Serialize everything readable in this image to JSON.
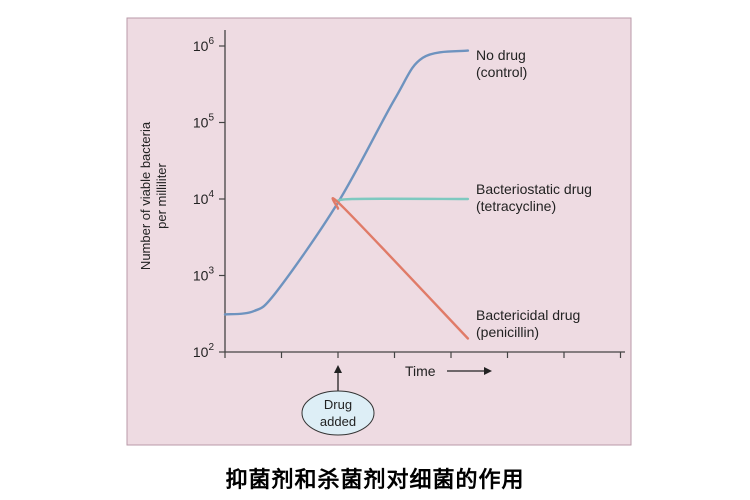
{
  "caption": "抑菌剂和杀菌剂对细菌的作用",
  "chart_data": {
    "type": "line",
    "title": "",
    "xlabel": "Time",
    "ylabel": "Number of viable bacteria per milliliter",
    "y_scale": "log",
    "ylim": [
      100,
      1000000
    ],
    "y_ticks": [
      {
        "value": 100,
        "base": "10",
        "exp": "2"
      },
      {
        "value": 1000,
        "base": "10",
        "exp": "3"
      },
      {
        "value": 10000,
        "base": "10",
        "exp": "4"
      },
      {
        "value": 100000,
        "base": "10",
        "exp": "5"
      },
      {
        "value": 1000000,
        "base": "10",
        "exp": "6"
      }
    ],
    "annotation": {
      "label": "Drug added",
      "x": 2
    },
    "grid": false,
    "series": [
      {
        "name": "No drug (control)",
        "label_lines": [
          "No drug",
          "(control)"
        ],
        "color": "#6e93bf",
        "x": [
          0,
          0.5,
          0.9,
          2,
          3,
          3.5,
          4.3
        ],
        "y": [
          310,
          340,
          600,
          9000,
          200000,
          700000,
          870000
        ]
      },
      {
        "name": "Bacteriostatic drug (tetracycline)",
        "label_lines": [
          "Bacteriostatic drug",
          "(tetracycline)"
        ],
        "color": "#7ec9c0",
        "x": [
          2,
          2.25,
          4.3
        ],
        "y": [
          9000,
          10000,
          10000
        ]
      },
      {
        "name": "Bactericidal drug (penicillin)",
        "label_lines": [
          "Bactericidal drug",
          "(penicillin)"
        ],
        "color": "#e07b68",
        "x": [
          2,
          2.1,
          4.3
        ],
        "y": [
          7500,
          7700,
          150
        ]
      }
    ]
  }
}
